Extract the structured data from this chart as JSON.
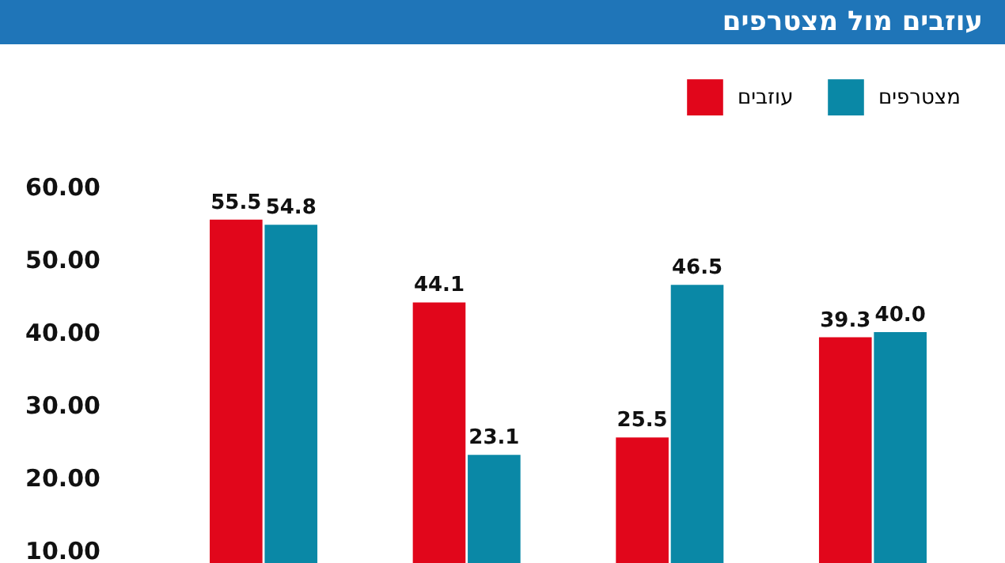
{
  "chart_data": {
    "type": "bar",
    "title": "עוזבים מול מצטרפים",
    "categories": [
      null,
      null,
      null,
      null
    ],
    "series": [
      {
        "name": "עוזבים",
        "color": "#e1061b",
        "values": [
          55.5,
          44.1,
          25.5,
          39.3
        ],
        "value_labels": [
          "55.5",
          "44.1",
          "25.5",
          "39.3"
        ]
      },
      {
        "name": "מצטרפים",
        "color": "#0a88a6",
        "values": [
          54.8,
          23.1,
          46.5,
          40.0
        ],
        "value_labels": [
          "54.8",
          "23.1",
          "46.5",
          "40.0"
        ]
      }
    ],
    "ylim": [
      8,
      62
    ],
    "yticks": [
      {
        "value": 10,
        "label": "10.00"
      },
      {
        "value": 20,
        "label": "20.00"
      },
      {
        "value": 30,
        "label": "30.00"
      },
      {
        "value": 40,
        "label": "40.00"
      },
      {
        "value": 50,
        "label": "50.00"
      },
      {
        "value": 60,
        "label": "60.00"
      }
    ],
    "grid": false,
    "legend": "top right",
    "tick_labels": "y"
  }
}
